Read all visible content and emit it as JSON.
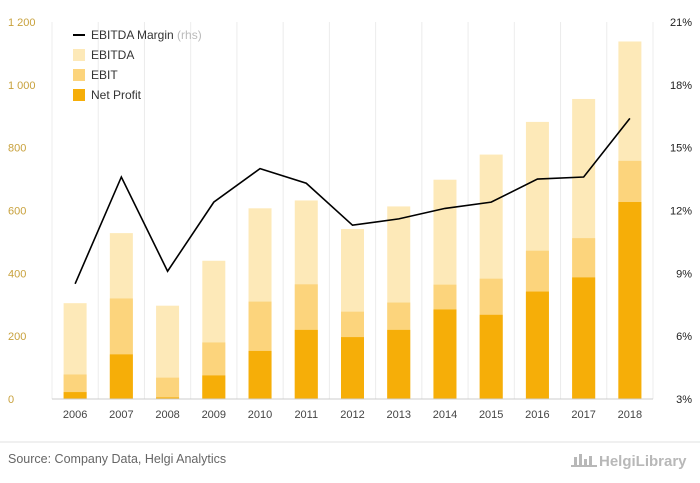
{
  "chart_data": {
    "type": "bar",
    "stacked_overlay": true,
    "categories": [
      "2006",
      "2007",
      "2008",
      "2009",
      "2010",
      "2011",
      "2012",
      "2013",
      "2014",
      "2015",
      "2016",
      "2017",
      "2018"
    ],
    "series": [
      {
        "name": "EBITDA",
        "type": "bar",
        "axis": "left",
        "color": "#fde9b8",
        "values": [
          305,
          528,
          297,
          440,
          607,
          632,
          541,
          613,
          698,
          778,
          882,
          955,
          1138
        ]
      },
      {
        "name": "EBIT",
        "type": "bar",
        "axis": "left",
        "color": "#fcd47c",
        "values": [
          78,
          320,
          68,
          180,
          310,
          365,
          278,
          307,
          364,
          383,
          472,
          512,
          758
        ]
      },
      {
        "name": "Net Profit",
        "type": "bar",
        "axis": "left",
        "color": "#f6ae08",
        "values": [
          22,
          142,
          5,
          75,
          153,
          220,
          197,
          220,
          285,
          268,
          342,
          387,
          627
        ]
      },
      {
        "name": "EBITDA Margin",
        "name_suffix": "(rhs)",
        "type": "line",
        "axis": "right",
        "color": "#000000",
        "values": [
          8.5,
          13.6,
          9.1,
          12.4,
          14.0,
          13.3,
          11.3,
          11.6,
          12.1,
          12.4,
          13.5,
          13.6,
          16.4
        ]
      }
    ],
    "y_left": {
      "ylim": [
        0,
        1200
      ],
      "ticks": [
        0,
        200,
        400,
        600,
        800,
        1000,
        1200
      ],
      "tick_labels": [
        "0",
        "200",
        "400",
        "600",
        "800",
        "1 000",
        "1 200"
      ]
    },
    "y_right": {
      "ylim": [
        3,
        21
      ],
      "ticks": [
        3,
        6,
        9,
        12,
        15,
        18,
        21
      ],
      "tick_labels": [
        "3%",
        "6%",
        "9%",
        "12%",
        "15%",
        "18%",
        "21%"
      ]
    },
    "grid": "vertical",
    "legend": "top-left"
  },
  "legend_items": [
    {
      "label": "EBITDA Margin",
      "sub": "(rhs)",
      "kind": "line",
      "color": "#000000"
    },
    {
      "label": "EBITDA",
      "sub": "",
      "kind": "box",
      "color": "#fde9b8"
    },
    {
      "label": "EBIT",
      "sub": "",
      "kind": "box",
      "color": "#fcd47c"
    },
    {
      "label": "Net Profit",
      "sub": "",
      "kind": "box",
      "color": "#f6ae08"
    }
  ],
  "source": "Source: Company Data, Helgi Analytics",
  "brand": {
    "name": "HelgiLibrary",
    "icon": "helgi-library-logo-icon"
  }
}
